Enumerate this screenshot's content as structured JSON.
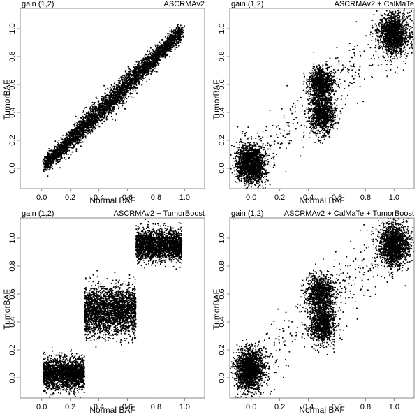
{
  "figure": {
    "panels": [
      {
        "id": "p1",
        "title_left": "gain (1,2)",
        "title_right": "ASCRMAv2",
        "xlabel": "Normal BAF",
        "ylabel": "TumorBAF"
      },
      {
        "id": "p2",
        "title_left": "gain (1,2)",
        "title_right": "ASCRMAv2 + CalMaTe",
        "xlabel": "Normal BAF",
        "ylabel": "TumorBAF"
      },
      {
        "id": "p3",
        "title_left": "gain (1,2)",
        "title_right": "ASCRMAv2 + TumorBoost",
        "xlabel": "Normal BAF",
        "ylabel": "TumorBAF"
      },
      {
        "id": "p4",
        "title_left": "gain (1,2)",
        "title_right": "ASCRMAv2 + CalMaTe + TumorBoost",
        "xlabel": "Normal BAF",
        "ylabel": "TumorBAF"
      }
    ]
  },
  "chart_data": [
    {
      "type": "scatter",
      "title": "gain (1,2) — ASCRMAv2",
      "xlabel": "Normal BAF",
      "ylabel": "TumorBAF",
      "xlim": [
        -0.15,
        1.14
      ],
      "ylim": [
        -0.145,
        1.145
      ],
      "xticks": [
        0.0,
        0.2,
        0.4,
        0.6,
        0.8,
        1.0
      ],
      "yticks": [
        0.0,
        0.2,
        0.4,
        0.6,
        0.8,
        1.0
      ],
      "xtick_labels": [
        "0.0",
        "0.2",
        "0.4",
        "0.6",
        "0.8",
        "1.0"
      ],
      "ytick_labels": [
        "0.0",
        "0.2",
        "0.4",
        "0.6",
        "0.8",
        "1.0"
      ],
      "grid": false,
      "description": "Dense diagonal band of points from (0.02,0.02) to (0.98,0.98), TumorBAF ≈ NormalBAF with spread ±0.1",
      "clusters": [
        {
          "kind": "band",
          "x0": 0.02,
          "x1": 0.98,
          "slope": 1.0,
          "intercept": 0.0,
          "sd": 0.045,
          "n": 4500
        }
      ]
    },
    {
      "type": "scatter",
      "title": "gain (1,2) — ASCRMAv2 + CalMaTe",
      "xlabel": "Normal BAF",
      "ylabel": "TumorBAF",
      "xlim": [
        -0.15,
        1.14
      ],
      "ylim": [
        -0.145,
        1.145
      ],
      "xticks": [
        0.0,
        0.2,
        0.4,
        0.6,
        0.8,
        1.0
      ],
      "yticks": [
        0.0,
        0.2,
        0.4,
        0.6,
        0.8,
        1.0
      ],
      "xtick_labels": [
        "0.0",
        "0.2",
        "0.4",
        "0.6",
        "0.8",
        "1.0"
      ],
      "ytick_labels": [
        "0.0",
        "0.2",
        "0.4",
        "0.6",
        "0.8",
        "1.0"
      ],
      "grid": false,
      "clusters": [
        {
          "kind": "gauss",
          "cx": 0.0,
          "cy": 0.03,
          "sx": 0.05,
          "sy": 0.07,
          "n": 1600
        },
        {
          "kind": "gauss",
          "cx": 0.49,
          "cy": 0.6,
          "sx": 0.045,
          "sy": 0.06,
          "n": 1000
        },
        {
          "kind": "gauss",
          "cx": 0.5,
          "cy": 0.38,
          "sx": 0.045,
          "sy": 0.065,
          "n": 1000
        },
        {
          "kind": "gauss",
          "cx": 1.0,
          "cy": 0.96,
          "sx": 0.05,
          "sy": 0.07,
          "n": 1600
        },
        {
          "kind": "scatter",
          "x0": -0.1,
          "x1": 1.12,
          "slope": 0.95,
          "intercept": 0.03,
          "sd": 0.12,
          "n": 350
        }
      ]
    },
    {
      "type": "scatter",
      "title": "gain (1,2) — ASCRMAv2 + TumorBoost",
      "xlabel": "Normal BAF",
      "ylabel": "TumorBAF",
      "xlim": [
        -0.15,
        1.14
      ],
      "ylim": [
        -0.145,
        1.145
      ],
      "xticks": [
        0.0,
        0.2,
        0.4,
        0.6,
        0.8,
        1.0
      ],
      "yticks": [
        0.0,
        0.2,
        0.4,
        0.6,
        0.8,
        1.0
      ],
      "xtick_labels": [
        "0.0",
        "0.2",
        "0.4",
        "0.6",
        "0.8",
        "1.0"
      ],
      "ytick_labels": [
        "0.0",
        "0.2",
        "0.4",
        "0.6",
        "0.8",
        "1.0"
      ],
      "grid": false,
      "clusters": [
        {
          "kind": "box",
          "x0": 0.01,
          "x1": 0.3,
          "cy": 0.03,
          "sy": 0.055,
          "n": 2200
        },
        {
          "kind": "box",
          "x0": 0.3,
          "x1": 0.66,
          "cy": 0.48,
          "sy": 0.085,
          "n": 2600
        },
        {
          "kind": "box",
          "x0": 0.66,
          "x1": 0.98,
          "cy": 0.95,
          "sy": 0.055,
          "n": 2200
        }
      ]
    },
    {
      "type": "scatter",
      "title": "gain (1,2) — ASCRMAv2 + CalMaTe + TumorBoost",
      "xlabel": "Normal BAF",
      "ylabel": "TumorBAF",
      "xlim": [
        -0.15,
        1.14
      ],
      "ylim": [
        -0.145,
        1.145
      ],
      "xticks": [
        0.0,
        0.2,
        0.4,
        0.6,
        0.8,
        1.0
      ],
      "yticks": [
        0.0,
        0.2,
        0.4,
        0.6,
        0.8,
        1.0
      ],
      "xtick_labels": [
        "0.0",
        "0.2",
        "0.4",
        "0.6",
        "0.8",
        "1.0"
      ],
      "ytick_labels": [
        "0.0",
        "0.2",
        "0.4",
        "0.6",
        "0.8",
        "1.0"
      ],
      "grid": false,
      "clusters": [
        {
          "kind": "gauss",
          "cx": -0.01,
          "cy": 0.06,
          "sx": 0.05,
          "sy": 0.075,
          "n": 1600
        },
        {
          "kind": "gauss",
          "cx": 0.48,
          "cy": 0.6,
          "sx": 0.05,
          "sy": 0.065,
          "n": 1000
        },
        {
          "kind": "gauss",
          "cx": 0.5,
          "cy": 0.38,
          "sx": 0.045,
          "sy": 0.065,
          "n": 1000
        },
        {
          "kind": "gauss",
          "cx": 1.0,
          "cy": 0.95,
          "sx": 0.05,
          "sy": 0.075,
          "n": 1600
        },
        {
          "kind": "scatter",
          "x0": -0.12,
          "x1": 1.12,
          "slope": 0.95,
          "intercept": 0.04,
          "sd": 0.13,
          "n": 400
        }
      ]
    }
  ]
}
